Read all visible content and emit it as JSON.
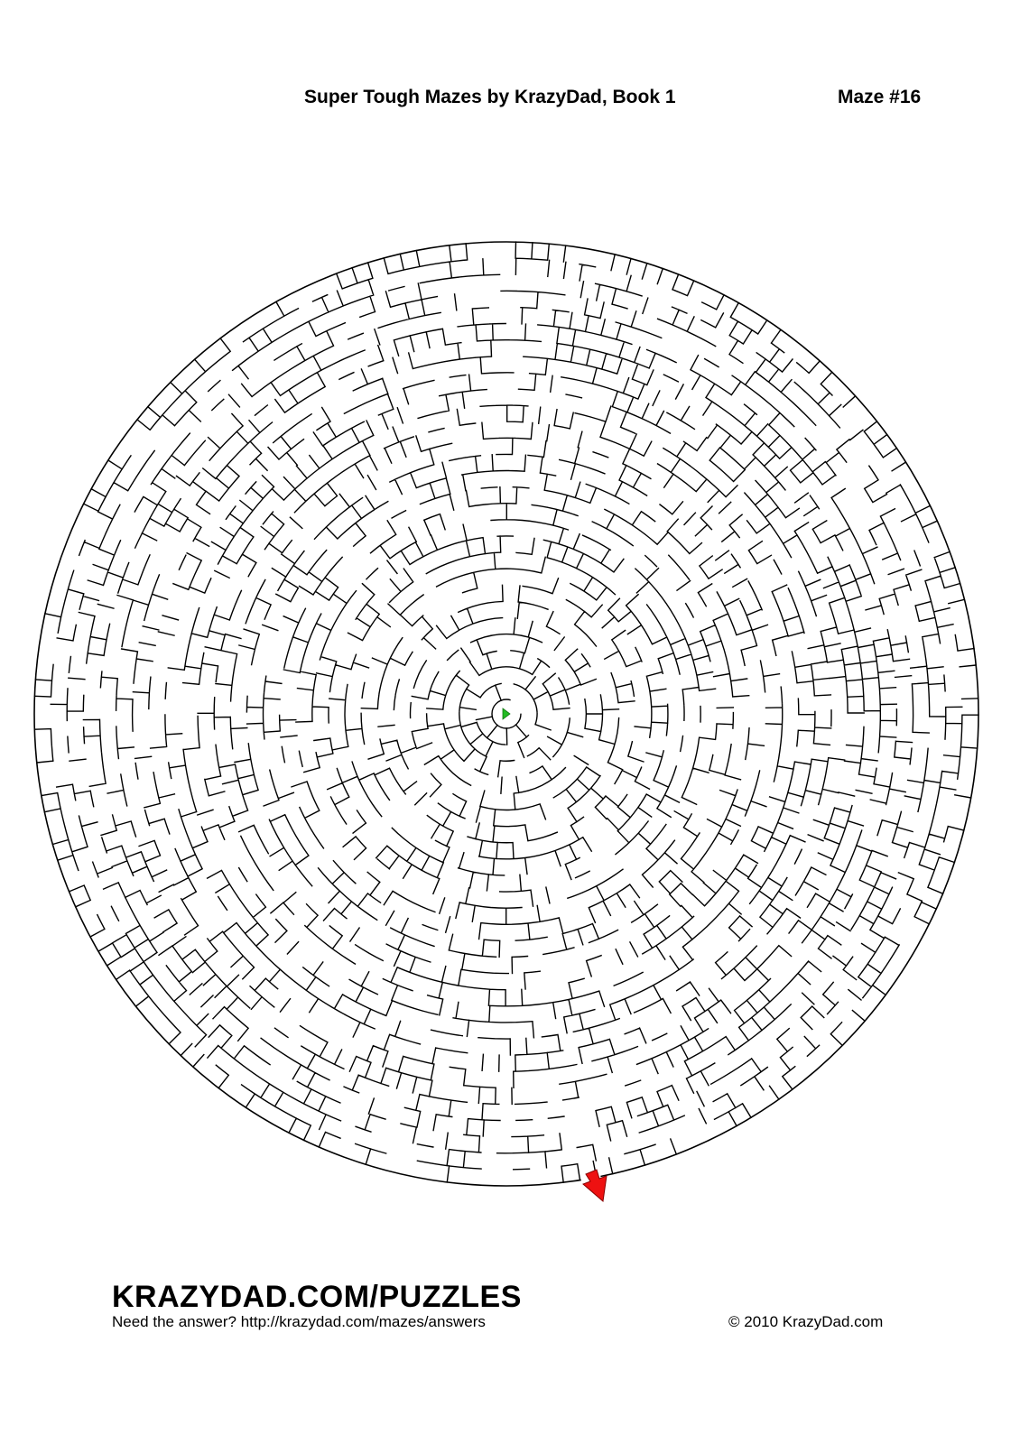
{
  "header": {
    "book_title": "Super Tough Mazes by KrazyDad, Book 1",
    "maze_number": "Maze #16"
  },
  "maze": {
    "shape": "circular",
    "wall_color": "#000000",
    "goal_marker_color": "#22bb22",
    "entry_arrow_color": "#ee1111"
  },
  "footer": {
    "brand": "KRAZYDAD.COM/PUZZLES",
    "answer_prompt": "Need the answer? http://krazydad.com/mazes/answers",
    "copyright": "© 2010 KrazyDad.com"
  }
}
